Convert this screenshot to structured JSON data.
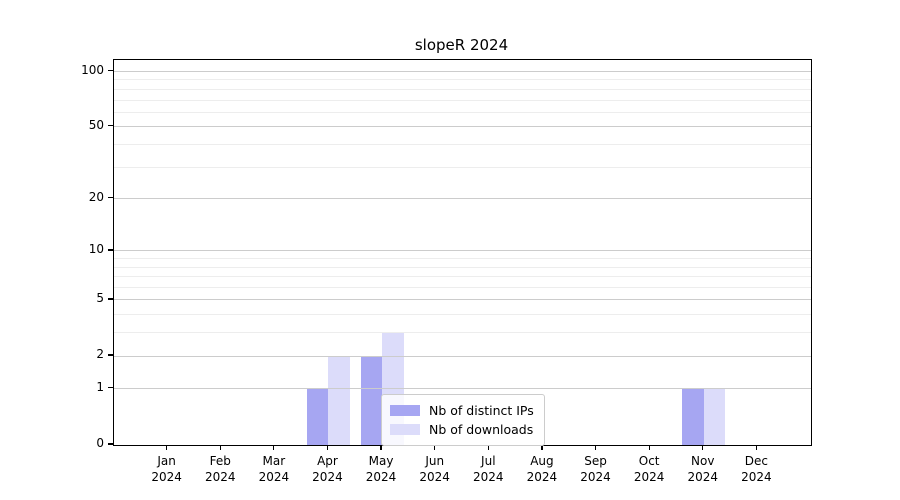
{
  "chart_data": {
    "type": "bar",
    "title": "slopeR 2024",
    "categories": [
      {
        "month": "Jan",
        "year": "2024"
      },
      {
        "month": "Feb",
        "year": "2024"
      },
      {
        "month": "Mar",
        "year": "2024"
      },
      {
        "month": "Apr",
        "year": "2024"
      },
      {
        "month": "May",
        "year": "2024"
      },
      {
        "month": "Jun",
        "year": "2024"
      },
      {
        "month": "Jul",
        "year": "2024"
      },
      {
        "month": "Aug",
        "year": "2024"
      },
      {
        "month": "Sep",
        "year": "2024"
      },
      {
        "month": "Oct",
        "year": "2024"
      },
      {
        "month": "Nov",
        "year": "2024"
      },
      {
        "month": "Dec",
        "year": "2024"
      }
    ],
    "series": [
      {
        "name": "Nb of distinct IPs",
        "color": "#a6a6f2",
        "values": [
          0,
          0,
          0,
          1,
          2,
          0,
          0,
          0,
          0,
          0,
          1,
          0
        ]
      },
      {
        "name": "Nb of downloads",
        "color": "#dcdcfa",
        "values": [
          0,
          0,
          0,
          2,
          3,
          0,
          0,
          0,
          0,
          0,
          1,
          0
        ]
      }
    ],
    "xlabel": "",
    "ylabel": "",
    "yscale": "log1p",
    "ylim": [
      0,
      115
    ],
    "yticks": [
      0,
      1,
      2,
      5,
      10,
      20,
      50,
      100
    ],
    "minor_gridlines": [
      3,
      4,
      6,
      7,
      8,
      9,
      30,
      40,
      60,
      70,
      80,
      90
    ],
    "grid": true,
    "legend_position": "inside lower-center",
    "grid_major_color": "#cccccc",
    "grid_minor_color": "#ededed",
    "spine_color": "#000000"
  }
}
